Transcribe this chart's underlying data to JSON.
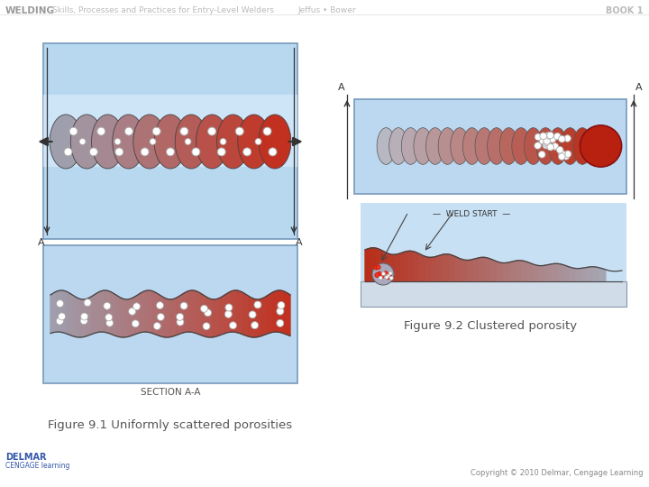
{
  "background_color": "#ffffff",
  "header_text": "WELDING",
  "header_subtitle": " Skills, Processes and Practices for Entry-Level Welders",
  "header_authors": "Jeffus • Bower",
  "header_book": "BOOK 1",
  "caption1": "Figure 9.1 Uniformly scattered porosities",
  "caption2": "Figure 9.2 Clustered porosity",
  "footer_copyright": "Copyright © 2010 Delmar, Cengage Learning",
  "section_label": "SECTION A-A",
  "weld_start_label": "WELD START",
  "color_blue_bg_light": "#cde3f5",
  "color_blue_bg_dark": "#a8c8e8",
  "color_gray_bead": "#9999aa",
  "color_red_bead": "#c03020",
  "color_white_pore": "#f5f5f5",
  "color_border": "#8899aa"
}
